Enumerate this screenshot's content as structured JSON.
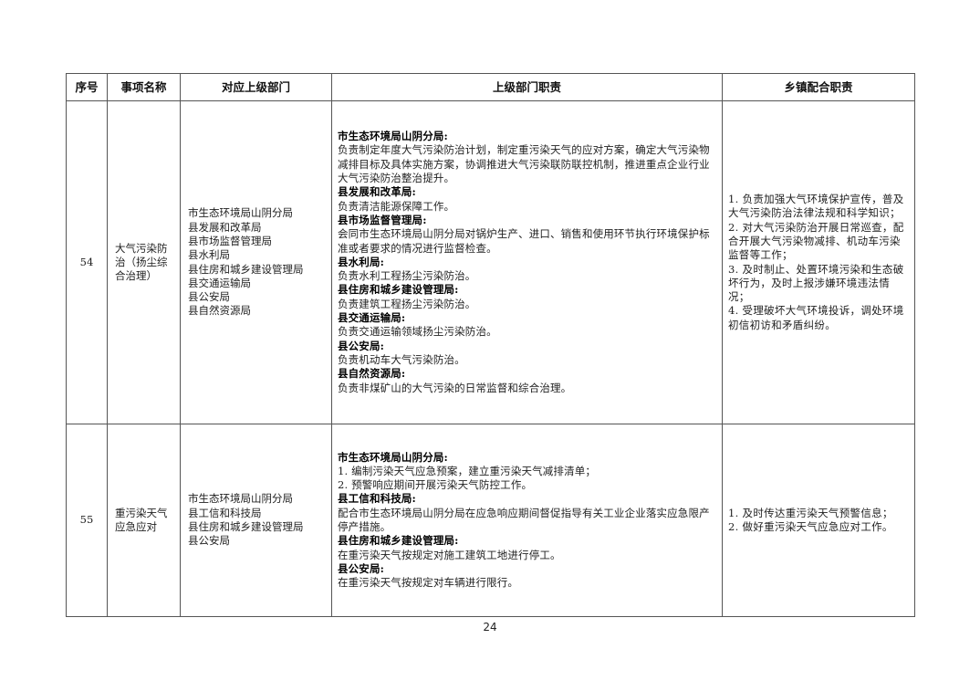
{
  "headers": [
    "序号",
    "事项名称",
    "对应上级部门",
    "上级部门职责",
    "乡镇配合职责"
  ],
  "rows": [
    {
      "no": "54",
      "name": "大气污染防治（扬尘综合治理）",
      "depts": [
        "市生态环境局山阴分局",
        "县发展和改革局",
        "县市场监督管理局",
        "县水利局",
        "县住房和城乡建设管理局",
        "县交通运输局",
        "县公安局",
        "县自然资源局"
      ],
      "duties": [
        {
          "title": "市生态环境局山阴分局:",
          "text": "负责制定年度大气污染防治计划，制定重污染天气的应对方案，确定大气污染物减排目标及具体实施方案，协调推进大气污染联防联控机制，推进重点企业行业大气污染防治整治提升。"
        },
        {
          "title": "县发展和改革局:",
          "text": "负责清洁能源保障工作。"
        },
        {
          "title": "县市场监督管理局:",
          "text": "会同市生态环境局山阴分局对锅炉生产、进口、销售和使用环节执行环境保护标准或者要求的情况进行监督检查。"
        },
        {
          "title": "县水利局:",
          "text": "负责水利工程扬尘污染防治。"
        },
        {
          "title": "县住房和城乡建设管理局:",
          "text": "负责建筑工程扬尘污染防治。"
        },
        {
          "title": "县交通运输局:",
          "text": "负责交通运输领域扬尘污染防治。"
        },
        {
          "title": "县公安局:",
          "text": "负责机动车大气污染防治。"
        },
        {
          "title": "县自然资源局:",
          "text": "负责非煤矿山的大气污染的日常监督和综合治理。"
        }
      ],
      "town": [
        "1. 负责加强大气环境保护宣传，普及大气污染防治法律法规和科学知识；",
        "2. 对大气污染防治开展日常巡查，配合开展大气污染物减排、机动车污染监督等工作；",
        "3. 及时制止、处置环境污染和生态破坏行为，及时上报涉嫌环境违法情况；",
        "4. 受理破坏大气环境投诉，调处环境初信初访和矛盾纠纷。"
      ]
    },
    {
      "no": "55",
      "name": "重污染天气应急应对",
      "depts": [
        "市生态环境局山阴分局",
        "县工信和科技局",
        "县住房和城乡建设管理局",
        "县公安局"
      ],
      "duties": [
        {
          "title": "市生态环境局山阴分局:",
          "text": "1. 编制污染天气应急预案，建立重污染天气减排清单；\n2. 预警响应期间开展污染天气防控工作。"
        },
        {
          "title": "县工信和科技局:",
          "text": "配合市生态环境局山阴分局在应急响应期间督促指导有关工业企业落实应急限产停产措施。"
        },
        {
          "title": "县住房和城乡建设管理局:",
          "text": "在重污染天气按规定对施工建筑工地进行停工。"
        },
        {
          "title": "县公安局:",
          "text": "在重污染天气按规定对车辆进行限行。"
        }
      ],
      "town": [
        "1. 及时传达重污染天气预警信息；",
        "2. 做好重污染天气应急应对工作。"
      ]
    }
  ],
  "page_number": "24"
}
